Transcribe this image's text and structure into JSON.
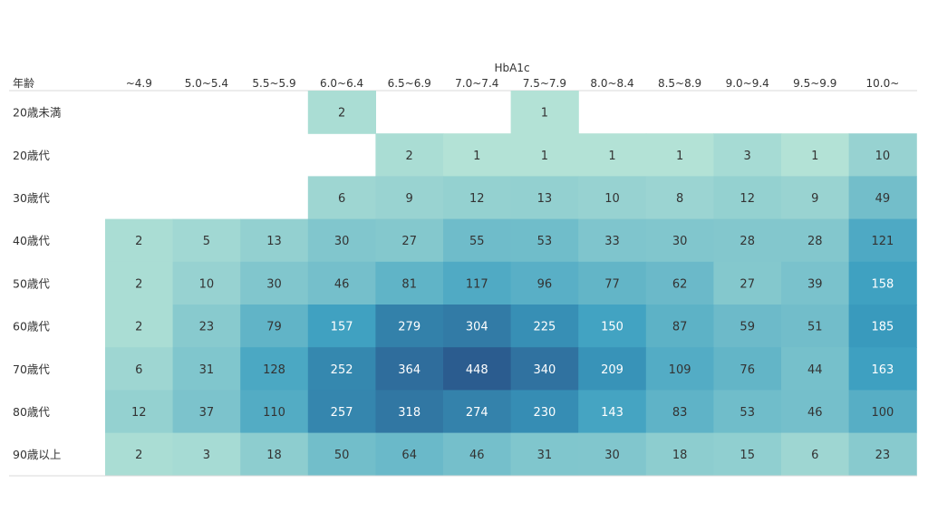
{
  "chart_data": {
    "type": "heatmap",
    "column_title": "HbA1c",
    "row_header": "年齢",
    "columns": [
      "~4.9",
      "5.0~5.4",
      "5.5~5.9",
      "6.0~6.4",
      "6.5~6.9",
      "7.0~7.4",
      "7.5~7.9",
      "8.0~8.4",
      "8.5~8.9",
      "9.0~9.4",
      "9.5~9.9",
      "10.0~"
    ],
    "rows": [
      "20歳未満",
      "20歳代",
      "30歳代",
      "40歳代",
      "50歳代",
      "60歳代",
      "70歳代",
      "80歳代",
      "90歳以上"
    ],
    "values": [
      [
        null,
        null,
        null,
        2,
        null,
        null,
        1,
        null,
        null,
        null,
        null,
        null
      ],
      [
        null,
        null,
        null,
        null,
        2,
        1,
        1,
        1,
        1,
        3,
        1,
        10
      ],
      [
        null,
        null,
        null,
        6,
        9,
        12,
        13,
        10,
        8,
        12,
        9,
        49
      ],
      [
        2,
        5,
        13,
        30,
        27,
        55,
        53,
        33,
        30,
        28,
        28,
        121
      ],
      [
        2,
        10,
        30,
        46,
        81,
        117,
        96,
        77,
        62,
        27,
        39,
        158
      ],
      [
        2,
        23,
        79,
        157,
        279,
        304,
        225,
        150,
        87,
        59,
        51,
        185
      ],
      [
        6,
        31,
        128,
        252,
        364,
        448,
        340,
        209,
        109,
        76,
        44,
        163
      ],
      [
        12,
        37,
        110,
        257,
        318,
        274,
        230,
        143,
        83,
        53,
        46,
        100
      ],
      [
        2,
        3,
        18,
        50,
        64,
        46,
        31,
        30,
        18,
        15,
        6,
        23
      ]
    ],
    "color_scale": {
      "low": "#b3e2d6",
      "mid": "#3a9ec0",
      "high": "#2b5c8f",
      "min": 1,
      "max": 448
    }
  }
}
